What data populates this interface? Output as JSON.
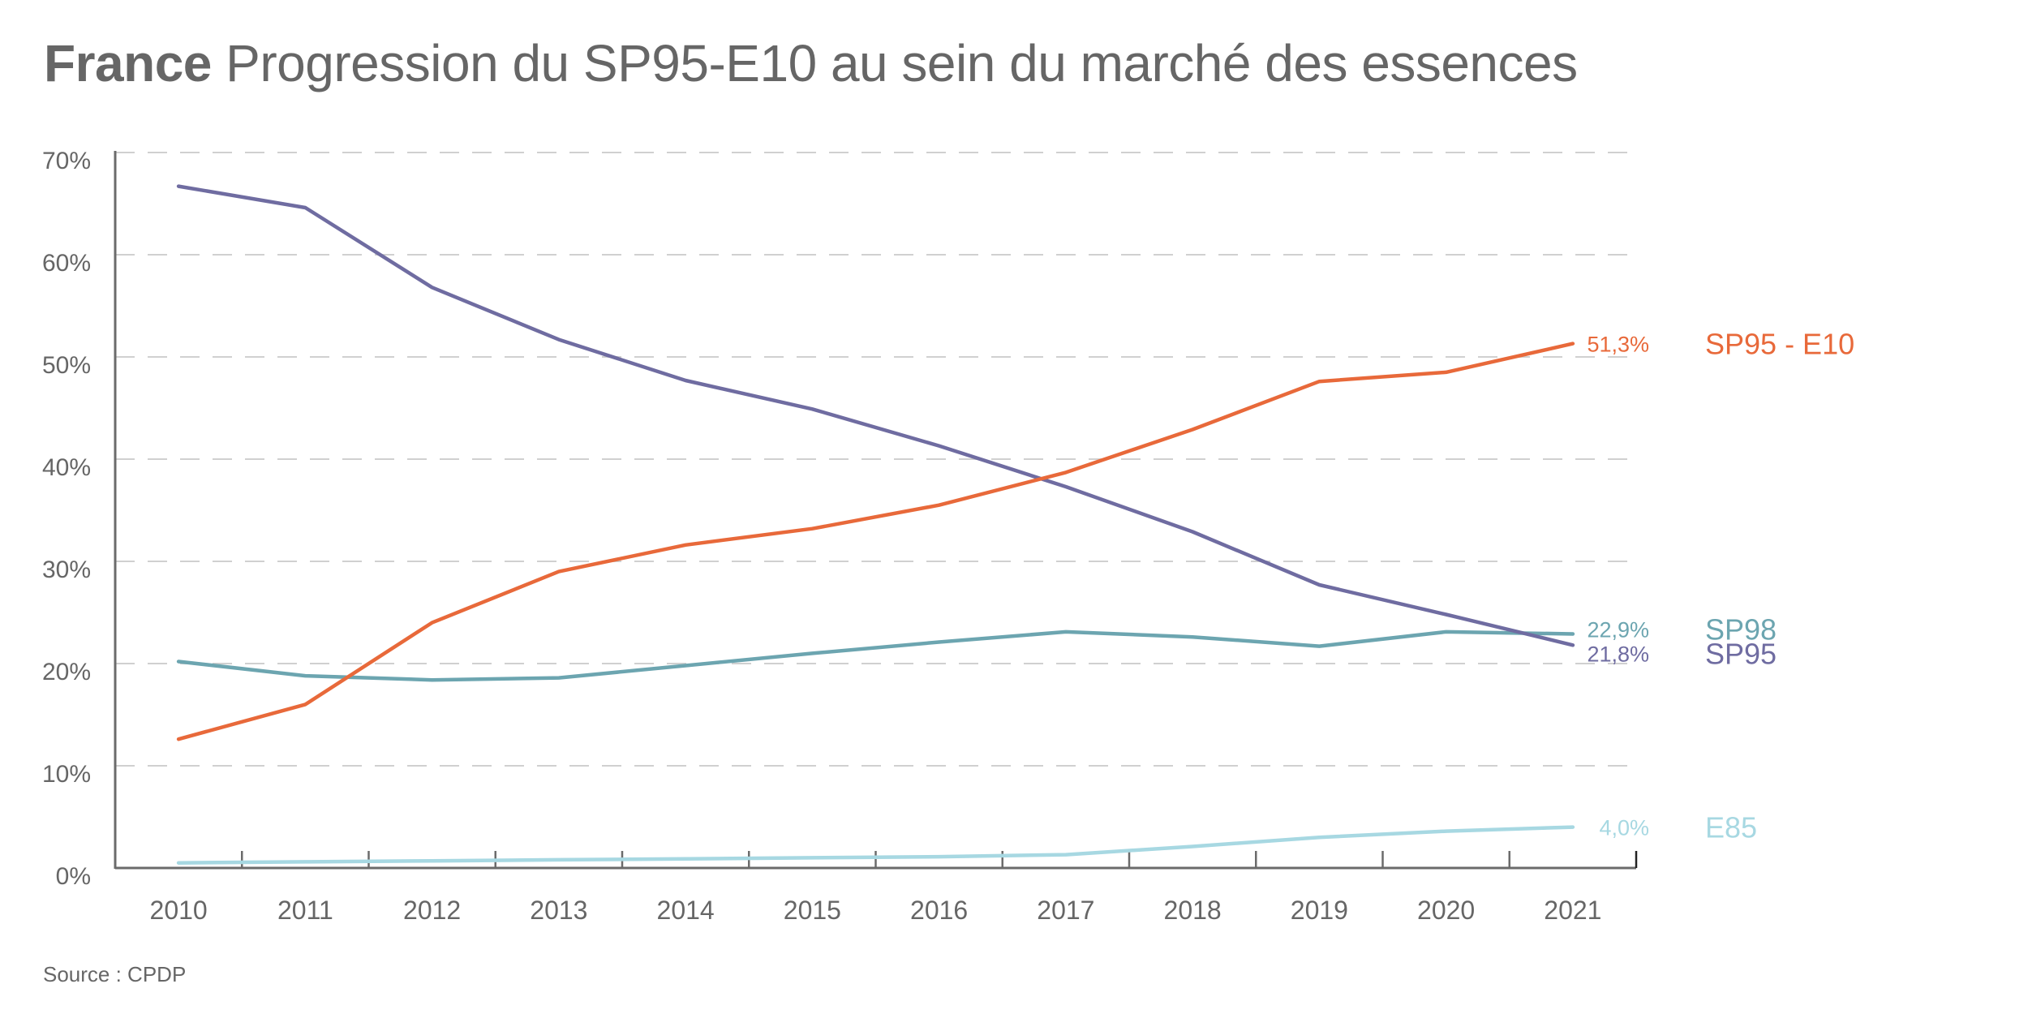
{
  "title": {
    "bold": "France",
    "rest": "Progression du SP95-E10 au sein du marché des essences"
  },
  "source": "Source : CPDP",
  "chart_data": {
    "type": "line",
    "title": "France Progression du SP95-E10 au sein du marché des essences",
    "xlabel": "",
    "ylabel": "",
    "x": [
      "2010",
      "2011",
      "2012",
      "2013",
      "2014",
      "2015",
      "2016",
      "2017",
      "2018",
      "2019",
      "2020",
      "2021"
    ],
    "ylim": [
      0,
      70
    ],
    "yticks": [
      0,
      10,
      20,
      30,
      40,
      50,
      60,
      70
    ],
    "ytick_labels": [
      "0%",
      "10%",
      "20%",
      "30%",
      "40%",
      "50%",
      "60%",
      "70%"
    ],
    "grid": "horizontal dashed",
    "legend": "right (inline labels at line ends)",
    "series": [
      {
        "name": "SP95 - E10",
        "color": "#E8693A",
        "values": [
          12.6,
          16.0,
          24.0,
          29.0,
          31.6,
          33.2,
          35.5,
          38.7,
          42.9,
          47.6,
          48.5,
          51.3
        ],
        "end_label": "51,3%"
      },
      {
        "name": "SP98",
        "color": "#6CA5B0",
        "values": [
          20.2,
          18.8,
          18.4,
          18.6,
          19.8,
          21.0,
          22.1,
          23.1,
          22.6,
          21.7,
          23.1,
          22.9
        ],
        "end_label": "22,9%"
      },
      {
        "name": "SP95",
        "color": "#6F6CA1",
        "values": [
          66.7,
          64.6,
          56.8,
          51.7,
          47.7,
          44.9,
          41.3,
          37.3,
          32.9,
          27.7,
          24.8,
          21.8
        ],
        "end_label": "21,8%"
      },
      {
        "name": "E85",
        "color": "#A7D8E2",
        "values": [
          0.5,
          0.6,
          0.7,
          0.8,
          0.9,
          1.0,
          1.1,
          1.3,
          2.1,
          3.0,
          3.6,
          4.0
        ],
        "end_label": "4,0%"
      }
    ]
  }
}
